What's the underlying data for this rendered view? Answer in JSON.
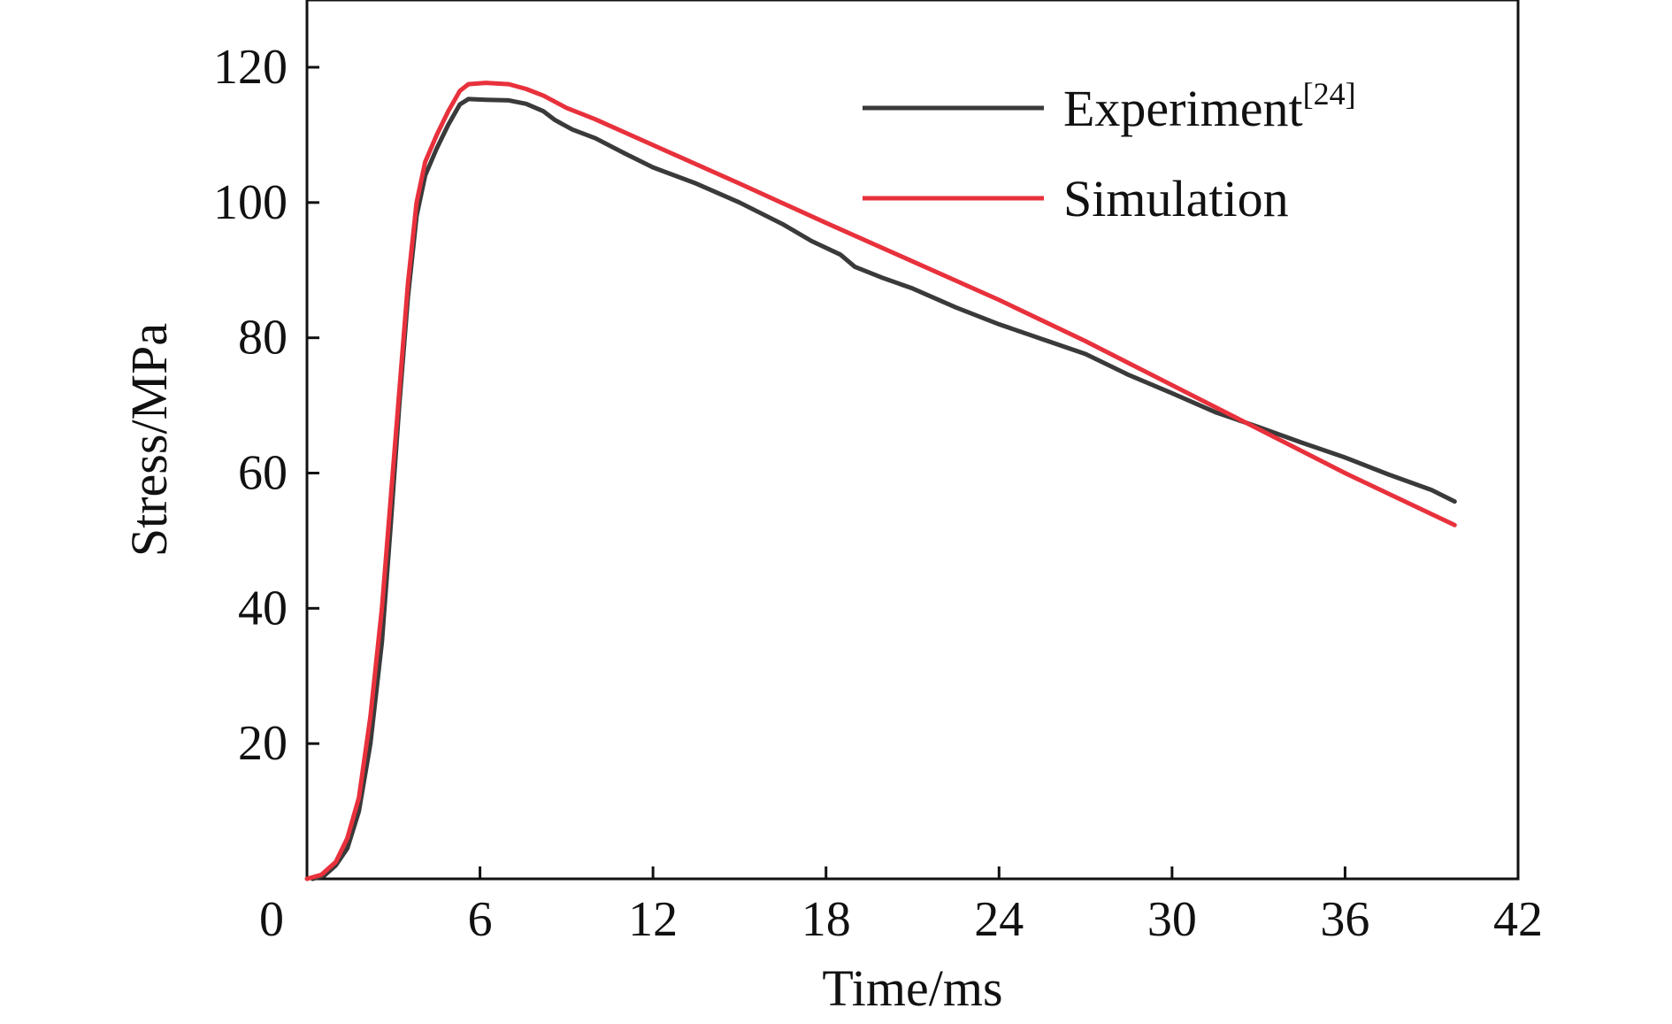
{
  "chart_data": {
    "type": "line",
    "title": "",
    "xlabel": "Time/ms",
    "ylabel": "Stress/MPa",
    "xlim": [
      0,
      42
    ],
    "ylim": [
      0,
      120
    ],
    "x_ticks": [
      0,
      6,
      12,
      18,
      24,
      30,
      36,
      42
    ],
    "y_ticks": [
      20,
      40,
      60,
      80,
      100,
      120
    ],
    "grid": false,
    "legend_position": "top-right",
    "series": [
      {
        "name": "Experiment",
        "name_superscript": "[24]",
        "color": "#3a3a3a",
        "points": [
          [
            0.2,
            0
          ],
          [
            0.6,
            0.5
          ],
          [
            1.0,
            2.0
          ],
          [
            1.4,
            4.5
          ],
          [
            1.8,
            10
          ],
          [
            2.2,
            20
          ],
          [
            2.6,
            35
          ],
          [
            2.9,
            52
          ],
          [
            3.2,
            70
          ],
          [
            3.5,
            86
          ],
          [
            3.8,
            98
          ],
          [
            4.1,
            104
          ],
          [
            4.5,
            108
          ],
          [
            4.9,
            111.5
          ],
          [
            5.3,
            114.5
          ],
          [
            5.6,
            115.3
          ],
          [
            6.2,
            115.2
          ],
          [
            7.0,
            115.1
          ],
          [
            7.6,
            114.6
          ],
          [
            8.2,
            113.5
          ],
          [
            8.6,
            112.2
          ],
          [
            9.2,
            110.8
          ],
          [
            10.0,
            109.5
          ],
          [
            11.0,
            107.3
          ],
          [
            12.0,
            105.2
          ],
          [
            13.5,
            102.8
          ],
          [
            15.0,
            100.0
          ],
          [
            16.5,
            96.8
          ],
          [
            17.5,
            94.3
          ],
          [
            18.5,
            92.3
          ],
          [
            19.0,
            90.5
          ],
          [
            20.0,
            88.8
          ],
          [
            21.0,
            87.3
          ],
          [
            22.5,
            84.5
          ],
          [
            24.0,
            82.0
          ],
          [
            25.5,
            79.8
          ],
          [
            27.0,
            77.6
          ],
          [
            28.5,
            74.5
          ],
          [
            30.0,
            71.8
          ],
          [
            31.5,
            69.0
          ],
          [
            33.0,
            66.8
          ],
          [
            34.5,
            64.5
          ],
          [
            36.0,
            62.3
          ],
          [
            37.5,
            59.8
          ],
          [
            39.0,
            57.5
          ],
          [
            39.8,
            55.8
          ]
        ]
      },
      {
        "name": "Simulation",
        "color": "#e8313c",
        "points": [
          [
            0.0,
            0
          ],
          [
            0.5,
            0.6
          ],
          [
            1.0,
            2.5
          ],
          [
            1.4,
            6
          ],
          [
            1.8,
            12
          ],
          [
            2.2,
            24
          ],
          [
            2.6,
            40
          ],
          [
            2.9,
            56
          ],
          [
            3.2,
            72
          ],
          [
            3.5,
            88
          ],
          [
            3.8,
            100
          ],
          [
            4.1,
            106
          ],
          [
            4.5,
            110
          ],
          [
            4.9,
            113.5
          ],
          [
            5.3,
            116.5
          ],
          [
            5.6,
            117.5
          ],
          [
            6.2,
            117.7
          ],
          [
            7.0,
            117.5
          ],
          [
            7.6,
            116.8
          ],
          [
            8.2,
            115.8
          ],
          [
            9.0,
            114.0
          ],
          [
            10.0,
            112.3
          ],
          [
            12.0,
            108.5
          ],
          [
            15.0,
            102.8
          ],
          [
            18.0,
            97.0
          ],
          [
            21.0,
            91.3
          ],
          [
            24.0,
            85.6
          ],
          [
            27.0,
            79.5
          ],
          [
            30.0,
            73.0
          ],
          [
            33.0,
            66.5
          ],
          [
            36.0,
            60.0
          ],
          [
            39.8,
            52.3
          ]
        ]
      }
    ]
  }
}
